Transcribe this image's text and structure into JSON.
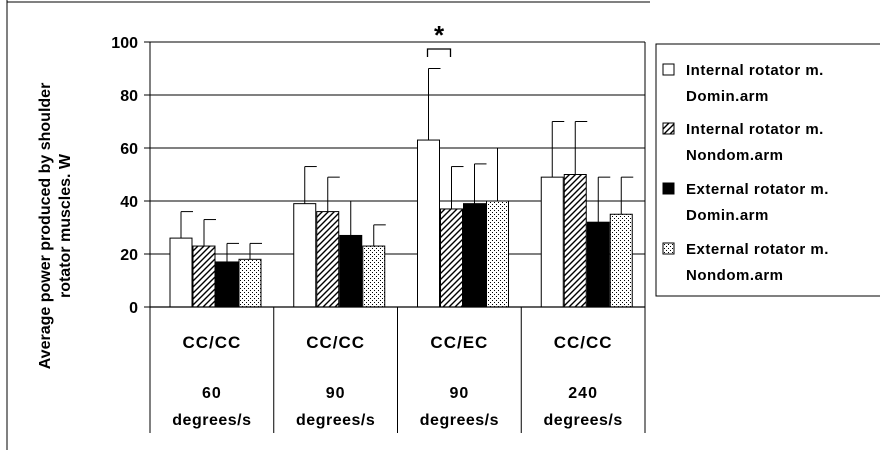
{
  "chart_data": {
    "type": "bar",
    "ylabel_lines": [
      "Average power produced by shoulder",
      "rotator muscles. W"
    ],
    "ylim": [
      0,
      100
    ],
    "yticks": [
      0,
      20,
      40,
      60,
      80,
      100
    ],
    "grid": true,
    "legend_position": "right",
    "categories": [
      {
        "mode": "CC/CC",
        "speed": "60",
        "unit": "degrees/s"
      },
      {
        "mode": "CC/CC",
        "speed": "90",
        "unit": "degrees/s"
      },
      {
        "mode": "CC/EC",
        "speed": "90",
        "unit": "degrees/s"
      },
      {
        "mode": "CC/CC",
        "speed": "240",
        "unit": "degrees/s"
      }
    ],
    "series": [
      {
        "name_lines": [
          "Internal rotator m.",
          "Domin.arm"
        ],
        "pattern": "white",
        "values": [
          26,
          39,
          63,
          49
        ],
        "errors": [
          10,
          14,
          27,
          21
        ]
      },
      {
        "name_lines": [
          "Internal rotator m.",
          "Nondom.arm"
        ],
        "pattern": "hatch",
        "values": [
          23,
          36,
          37,
          50
        ],
        "errors": [
          10,
          13,
          16,
          20
        ]
      },
      {
        "name_lines": [
          "External rotator m.",
          "Domin.arm"
        ],
        "pattern": "black",
        "values": [
          17,
          27,
          39,
          32
        ],
        "errors": [
          7,
          13,
          15,
          17
        ]
      },
      {
        "name_lines": [
          "External rotator m.",
          "Nondom.arm"
        ],
        "pattern": "dots",
        "values": [
          18,
          23,
          40,
          35
        ],
        "errors": [
          6,
          8,
          20,
          14
        ]
      }
    ],
    "annotation": {
      "text": "*",
      "category_index": 2,
      "series_from": 0,
      "series_to": 1
    }
  }
}
